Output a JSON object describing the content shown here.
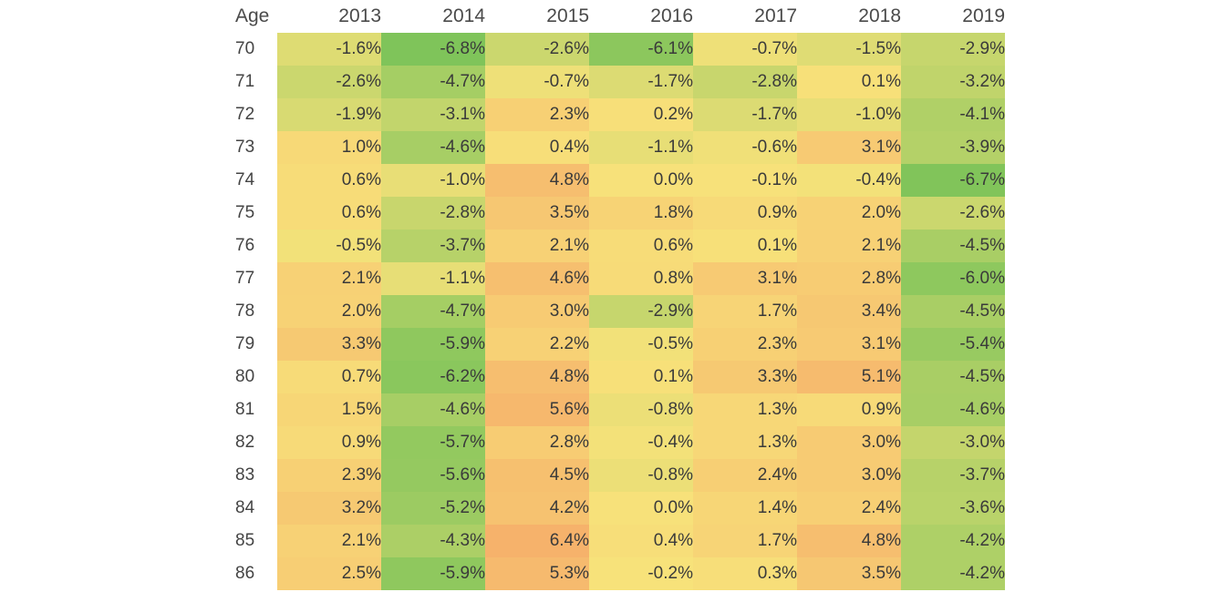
{
  "chart_data": {
    "type": "heatmap",
    "title": "",
    "row_header": "Age",
    "columns": [
      "2013",
      "2014",
      "2015",
      "2016",
      "2017",
      "2018",
      "2019"
    ],
    "rows": [
      "70",
      "71",
      "72",
      "73",
      "74",
      "75",
      "76",
      "77",
      "78",
      "79",
      "80",
      "81",
      "82",
      "83",
      "84",
      "85",
      "86"
    ],
    "values": [
      [
        -1.6,
        -6.8,
        -2.6,
        -6.1,
        -0.7,
        -1.5,
        -2.9
      ],
      [
        -2.6,
        -4.7,
        -0.7,
        -1.7,
        -2.8,
        0.1,
        -3.2
      ],
      [
        -1.9,
        -3.1,
        2.3,
        0.2,
        -1.7,
        -1.0,
        -4.1
      ],
      [
        1.0,
        -4.6,
        0.4,
        -1.1,
        -0.6,
        3.1,
        -3.9
      ],
      [
        0.6,
        -1.0,
        4.8,
        0.0,
        -0.1,
        -0.4,
        -6.7
      ],
      [
        0.6,
        -2.8,
        3.5,
        1.8,
        0.9,
        2.0,
        -2.6
      ],
      [
        -0.5,
        -3.7,
        2.1,
        0.6,
        0.1,
        2.1,
        -4.5
      ],
      [
        2.1,
        -1.1,
        4.6,
        0.8,
        3.1,
        2.8,
        -6.0
      ],
      [
        2.0,
        -4.7,
        3.0,
        -2.9,
        1.7,
        3.4,
        -4.5
      ],
      [
        3.3,
        -5.9,
        2.2,
        -0.5,
        2.3,
        3.1,
        -5.4
      ],
      [
        0.7,
        -6.2,
        4.8,
        0.1,
        3.3,
        5.1,
        -4.5
      ],
      [
        1.5,
        -4.6,
        5.6,
        -0.8,
        1.3,
        0.9,
        -4.6
      ],
      [
        0.9,
        -5.7,
        2.8,
        -0.4,
        1.3,
        3.0,
        -3.0
      ],
      [
        2.3,
        -5.6,
        4.5,
        -0.8,
        2.4,
        3.0,
        -3.7
      ],
      [
        3.2,
        -5.2,
        4.2,
        0.0,
        1.4,
        2.4,
        -3.6
      ],
      [
        2.1,
        -4.3,
        6.4,
        0.4,
        1.7,
        4.8,
        -4.2
      ],
      [
        2.5,
        -5.9,
        5.3,
        -0.2,
        0.3,
        3.5,
        -4.2
      ]
    ],
    "value_format": "percent_1dp",
    "color_scale": {
      "low": "#7fc45a",
      "mid": "#f7e27a",
      "high": "#f6b26b",
      "min": -6.8,
      "max": 6.4
    }
  }
}
